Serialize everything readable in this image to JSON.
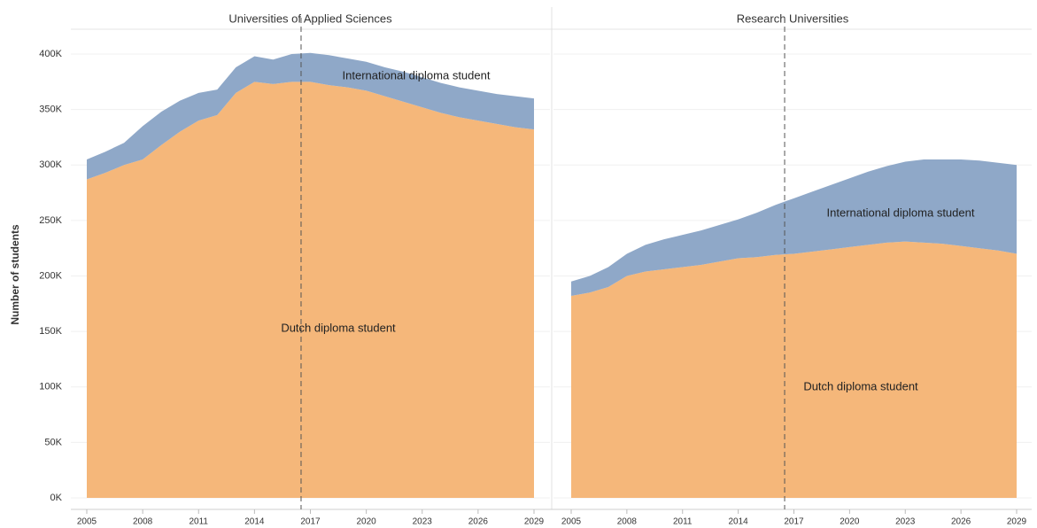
{
  "chart_data": [
    {
      "type": "stacked_area",
      "title": "Universities of Applied Sciences",
      "ylabel": "Number of students",
      "x": [
        2005,
        2006,
        2007,
        2008,
        2009,
        2010,
        2011,
        2012,
        2013,
        2014,
        2015,
        2016,
        2017,
        2018,
        2019,
        2020,
        2021,
        2022,
        2023,
        2024,
        2025,
        2026,
        2027,
        2028,
        2029
      ],
      "series": [
        {
          "name": "Dutch diploma student",
          "color": "#f5b77a",
          "values": [
            287000,
            293000,
            300000,
            305000,
            318000,
            330000,
            340000,
            345000,
            365000,
            375000,
            373000,
            375000,
            375000,
            372000,
            370000,
            367000,
            362000,
            357000,
            352000,
            347000,
            343000,
            340000,
            337000,
            334000,
            332000
          ]
        },
        {
          "name": "International diploma student",
          "color": "#8fa8c8",
          "values": [
            18000,
            19000,
            20000,
            30000,
            30000,
            28000,
            25000,
            23000,
            23000,
            23000,
            22000,
            25000,
            26000,
            27000,
            26000,
            26000,
            26000,
            27000,
            27000,
            27000,
            27000,
            27000,
            27000,
            28000,
            28000
          ]
        }
      ],
      "xlim": [
        2005,
        2029
      ],
      "xticks": [
        2005,
        2008,
        2011,
        2014,
        2017,
        2020,
        2023,
        2026,
        2029
      ],
      "ylim": [
        0,
        400000
      ],
      "yticks": [
        {
          "value": 0,
          "label": "0K"
        },
        {
          "value": 50000,
          "label": "50K"
        },
        {
          "value": 100000,
          "label": "100K"
        },
        {
          "value": 150000,
          "label": "150K"
        },
        {
          "value": 200000,
          "label": "200K"
        },
        {
          "value": 250000,
          "label": "250K"
        },
        {
          "value": 300000,
          "label": "300K"
        },
        {
          "value": 350000,
          "label": "350K"
        },
        {
          "value": 400000,
          "label": "400K"
        }
      ],
      "reference_x": 2016.5,
      "grid": true
    },
    {
      "type": "stacked_area",
      "title": "Research Universities",
      "x": [
        2005,
        2006,
        2007,
        2008,
        2009,
        2010,
        2011,
        2012,
        2013,
        2014,
        2015,
        2016,
        2017,
        2018,
        2019,
        2020,
        2021,
        2022,
        2023,
        2024,
        2025,
        2026,
        2027,
        2028,
        2029
      ],
      "series": [
        {
          "name": "Dutch diploma student",
          "color": "#f5b77a",
          "values": [
            182000,
            185000,
            190000,
            200000,
            204000,
            206000,
            208000,
            210000,
            213000,
            216000,
            217000,
            219000,
            220000,
            222000,
            224000,
            226000,
            228000,
            230000,
            231000,
            230000,
            229000,
            227000,
            225000,
            223000,
            220000
          ]
        },
        {
          "name": "International diploma student",
          "color": "#8fa8c8",
          "values": [
            13000,
            15000,
            18000,
            20000,
            24000,
            27000,
            29000,
            31000,
            33000,
            35000,
            40000,
            45000,
            50000,
            54000,
            58000,
            62000,
            66000,
            69000,
            72000,
            75000,
            76000,
            78000,
            79000,
            79000,
            80000
          ]
        }
      ],
      "xlim": [
        2005,
        2029
      ],
      "xticks": [
        2005,
        2008,
        2011,
        2014,
        2017,
        2020,
        2023,
        2026,
        2029
      ],
      "ylim": [
        0,
        400000
      ],
      "reference_x": 2016.5,
      "grid": true
    }
  ]
}
